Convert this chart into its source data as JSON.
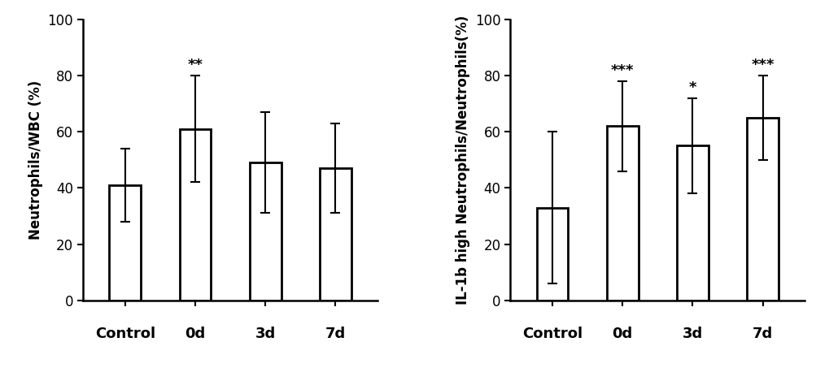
{
  "left": {
    "ylabel": "Neutrophils/WBC (%)",
    "categories": [
      "Control",
      "0d",
      "3d",
      "7d"
    ],
    "values": [
      41,
      61,
      49,
      47
    ],
    "errors": [
      13,
      19,
      18,
      16
    ],
    "sig_labels": [
      "",
      "**",
      "",
      ""
    ],
    "ylim": [
      0,
      100
    ],
    "yticks": [
      0,
      20,
      40,
      60,
      80,
      100
    ]
  },
  "right": {
    "ylabel": "IL-1b high Neutrophils/Neutrophils(%)",
    "categories": [
      "Control",
      "0d",
      "3d",
      "7d"
    ],
    "values": [
      33,
      62,
      55,
      65
    ],
    "errors": [
      27,
      16,
      17,
      15
    ],
    "sig_labels": [
      "",
      "***",
      "*",
      "***"
    ],
    "ylim": [
      0,
      100
    ],
    "yticks": [
      0,
      20,
      40,
      60,
      80,
      100
    ]
  },
  "bar_color": "#ffffff",
  "bar_edgecolor": "#000000",
  "bar_linewidth": 2.0,
  "bar_width": 0.45,
  "error_color": "#000000",
  "error_linewidth": 1.5,
  "error_capsize": 4,
  "sig_fontsize": 13,
  "axis_fontsize": 12,
  "tick_fontsize": 12,
  "xlabel_fontsize": 13,
  "background_color": "#ffffff"
}
